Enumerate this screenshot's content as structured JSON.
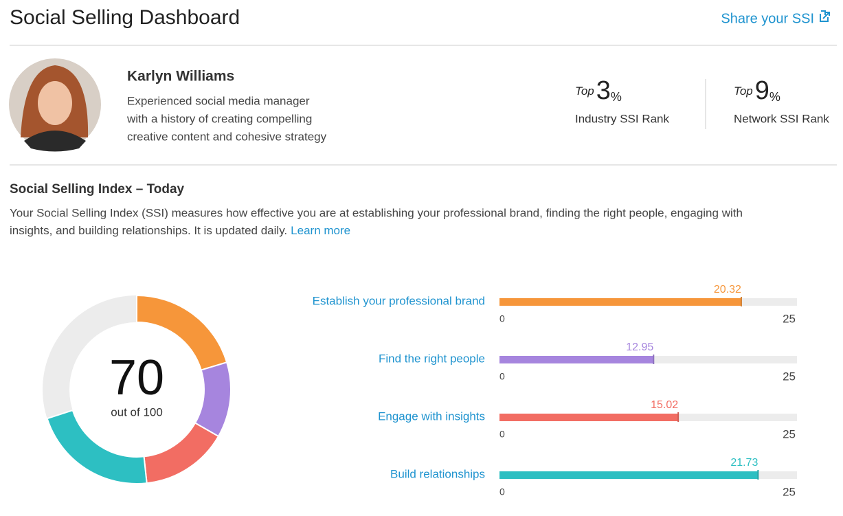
{
  "header": {
    "title": "Social Selling Dashboard",
    "share_link": "Share your SSI"
  },
  "profile": {
    "name": "Karlyn Williams",
    "bio_lines": [
      "Experienced social media manager",
      "with a history of creating compelling",
      "creative content and cohesive strategy"
    ]
  },
  "ranks": [
    {
      "prefix": "Top",
      "value": 3,
      "unit": "%",
      "label": "Industry SSI Rank"
    },
    {
      "prefix": "Top",
      "value": 9,
      "unit": "%",
      "label": "Network SSI Rank"
    }
  ],
  "ssi": {
    "title": "Social Selling Index – Today",
    "description_lines": [
      "Your Social Selling Index (SSI) measures how effective you are at establishing your professional brand, finding the right people, engaging with",
      "insights, and building relationships. It is updated daily."
    ],
    "learn_more": "Learn more"
  },
  "chart_data": {
    "type": "bar",
    "score": 70,
    "score_scale": {
      "value": 100,
      "label": "out of 100"
    },
    "categories": [
      "Establish your professional brand",
      "Find the right people",
      "Engage with insights",
      "Build relationships"
    ],
    "values": [
      20.32,
      12.95,
      15.02,
      21.73
    ],
    "colors": [
      "#f6963a",
      "#a685de",
      "#f26d63",
      "#2dbfc2"
    ],
    "xlim": [
      0,
      25
    ],
    "xticks": [
      0,
      25
    ]
  }
}
